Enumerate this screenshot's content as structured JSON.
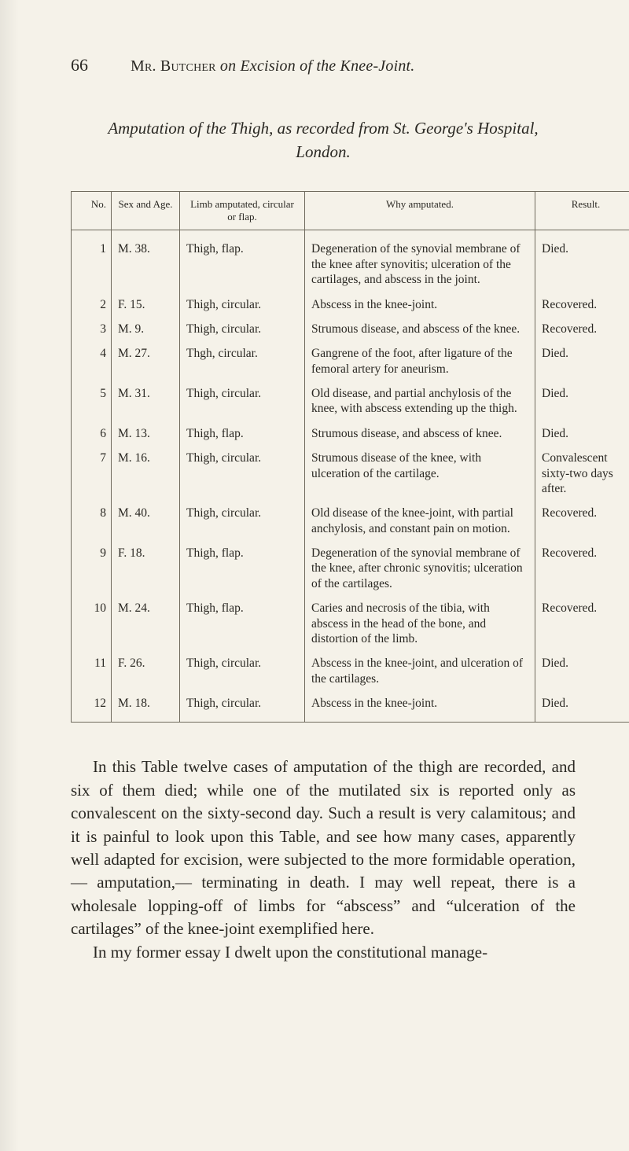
{
  "page_number": "66",
  "running_head_html": "M<span style='font-variant:small-caps'>r</span>. B<span style='font-variant:small-caps'>utcher</span> <i>on Excision of the Knee-Joint.</i>",
  "subtitle_html": "Amputation of the Thigh, as recorded from St. George's Hospital,<br>London.",
  "table": {
    "columns": [
      {
        "key": "no",
        "label": "No.",
        "class": "col-no"
      },
      {
        "key": "sexage",
        "label": "Sex and Age.",
        "class": "col-age"
      },
      {
        "key": "limb",
        "label": "Limb amputated, circular or flap.",
        "class": "col-limb"
      },
      {
        "key": "why",
        "label": "Why amputated.",
        "class": "col-why"
      },
      {
        "key": "result",
        "label": "Result.",
        "class": "col-res"
      }
    ],
    "rows": [
      {
        "no": "1",
        "sexage": "M. 38.",
        "limb": "Thigh, flap.",
        "why": "Degeneration of the synovial membrane of the knee after synovitis; ulceration of the cartilages, and abscess in the joint.",
        "result": "Died."
      },
      {
        "no": "2",
        "sexage": "F. 15.",
        "limb": "Thigh, circular.",
        "why": "Abscess in the knee-joint.",
        "result": "Recovered."
      },
      {
        "no": "3",
        "sexage": "M. 9.",
        "limb": "Thigh, circular.",
        "why": "Strumous disease, and abscess of the knee.",
        "result": "Recovered."
      },
      {
        "no": "4",
        "sexage": "M. 27.",
        "limb": "Thgh, circular.",
        "why": "Gangrene of the foot, after liga­ture of the femoral artery for aneurism.",
        "result": "Died."
      },
      {
        "no": "5",
        "sexage": "M. 31.",
        "limb": "Thigh, circular.",
        "why": "Old disease, and partial anchy­losis of the knee, with abscess extending up the thigh.",
        "result": "Died."
      },
      {
        "no": "6",
        "sexage": "M. 13.",
        "limb": "Thigh, flap.",
        "why": "Strumous disease, and abscess of knee.",
        "result": "Died."
      },
      {
        "no": "7",
        "sexage": "M. 16.",
        "limb": "Thigh, circular.",
        "why": "Strumous disease of the knee, with ulceration of the carti­lage.",
        "result": "Convalescent sixty-two days after."
      },
      {
        "no": "8",
        "sexage": "M. 40.",
        "limb": "Thigh, circular.",
        "why": "Old disease of the knee-joint, with partial anchylosis, and constant pain on motion.",
        "result": "Recovered."
      },
      {
        "no": "9",
        "sexage": "F. 18.",
        "limb": "Thigh, flap.",
        "why": "Degeneration of the synovial membrane of the knee, after chronic synovitis; ulceration of the cartilages.",
        "result": "Recovered."
      },
      {
        "no": "10",
        "sexage": "M. 24.",
        "limb": "Thigh, flap.",
        "why": "Caries and necrosis of the tibia, with abscess in the head of the bone, and distortion of the limb.",
        "result": "Recovered."
      },
      {
        "no": "11",
        "sexage": "F. 26.",
        "limb": "Thigh, circular.",
        "why": "Abscess in the knee-joint, and ulceration of the cartilages.",
        "result": "Died."
      },
      {
        "no": "12",
        "sexage": "M. 18.",
        "limb": "Thigh, circular.",
        "why": "Abscess in the knee-joint.",
        "result": "Died."
      }
    ]
  },
  "body_paragraph_1": "In this Table twelve cases of amputation of the thigh are recorded, and six of them died; while one of the mutilated six is reported only as convalescent on the sixty-second day. Such a result is very calamitous; and it is painful to look upon this Table, and see how many cases, apparently well adapted for excision, were subjected to the more formidable operation,— amputation,— terminating in death. I may well repeat, there is a wholesale lopping-off of limbs for “abscess” and “ulceration of the cartilages” of the knee-joint exemplified here.",
  "body_paragraph_2": "In my former essay I dwelt upon the constitutional manage-",
  "colors": {
    "paper": "#f5f2e9",
    "ink": "#2a2823",
    "rule": "#6f6a5d"
  }
}
